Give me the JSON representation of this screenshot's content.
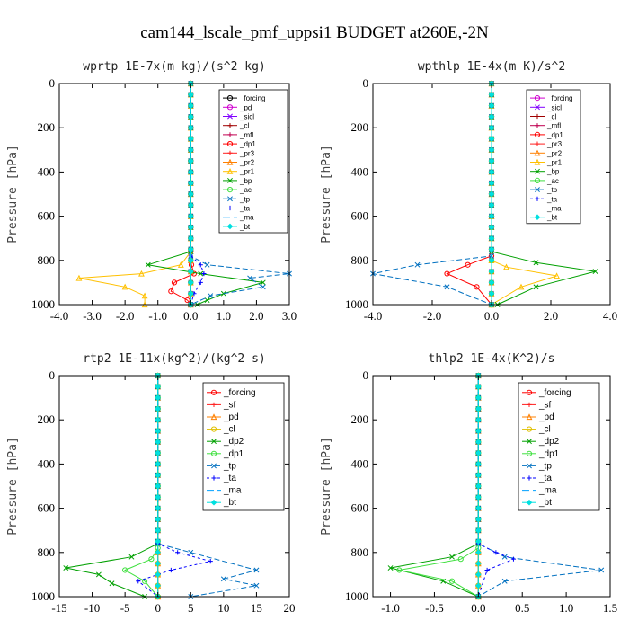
{
  "figure_title": "cam144_lscale_pmf_uppsi1  BUDGET at260E,-2N",
  "chart_data": [
    {
      "type": "line",
      "title": "wprtp  1E-7x(m kg)/(s^2 kg)",
      "ylabel": "Pressure [hPa]",
      "xlim": [
        -4.0,
        3.0
      ],
      "ylim": [
        1000,
        0
      ],
      "xticks": [
        "-4.0",
        "-3.0",
        "-2.0",
        "-1.0",
        "0.0",
        "1.0",
        "2.0",
        "3.0"
      ],
      "yticks": [
        "0",
        "200",
        "400",
        "600",
        "800",
        "1000"
      ],
      "legend_position": "upper-right",
      "series": [
        {
          "name": "_forcing",
          "color": "#000000",
          "marker": "o",
          "dash": "",
          "x": [
            0,
            0
          ],
          "y": [
            0,
            1000
          ]
        },
        {
          "name": "_pd",
          "color": "#d000d0",
          "marker": "o",
          "dash": "",
          "x": [
            0,
            0
          ],
          "y": [
            0,
            1000
          ]
        },
        {
          "name": "_sicl",
          "color": "#8000ff",
          "marker": "x",
          "dash": "",
          "x": [
            0,
            0
          ],
          "y": [
            0,
            1000
          ]
        },
        {
          "name": "_cl",
          "color": "#a00000",
          "marker": "+",
          "dash": "",
          "x": [
            0,
            0
          ],
          "y": [
            0,
            1000
          ]
        },
        {
          "name": "_mfl",
          "color": "#c00050",
          "marker": "+",
          "dash": "",
          "x": [
            0,
            0
          ],
          "y": [
            0,
            1000
          ]
        },
        {
          "name": "_dp1",
          "color": "#ff0000",
          "marker": "o",
          "dash": "",
          "x": [
            0,
            0,
            0.02,
            0.1,
            -0.5,
            -0.6,
            -0.1,
            0
          ],
          "y": [
            0,
            760,
            820,
            860,
            900,
            940,
            980,
            1000
          ]
        },
        {
          "name": "_pr3",
          "color": "#ff2020",
          "marker": "+",
          "dash": "",
          "x": [
            0,
            0
          ],
          "y": [
            0,
            1000
          ]
        },
        {
          "name": "_pr2",
          "color": "#ff8000",
          "marker": "^",
          "dash": "",
          "x": [
            0,
            0
          ],
          "y": [
            0,
            1000
          ]
        },
        {
          "name": "_pr1",
          "color": "#ffc000",
          "marker": "^",
          "dash": "",
          "x": [
            0,
            0,
            -0.3,
            -1.5,
            -3.4,
            -2.0,
            -1.4,
            -1.4
          ],
          "y": [
            0,
            760,
            820,
            860,
            880,
            920,
            960,
            1000
          ]
        },
        {
          "name": "_bp",
          "color": "#00a000",
          "marker": "x",
          "dash": "",
          "x": [
            0,
            0,
            -1.3,
            0.3,
            2.2,
            1.0,
            0.5,
            0.2
          ],
          "y": [
            0,
            760,
            820,
            860,
            900,
            950,
            980,
            1000
          ]
        },
        {
          "name": "_ac",
          "color": "#40e040",
          "marker": "o",
          "dash": "",
          "x": [
            0,
            0
          ],
          "y": [
            0,
            1000
          ]
        },
        {
          "name": "_tp",
          "color": "#0070c0",
          "marker": "x",
          "dash": "6,3",
          "x": [
            0,
            0,
            0.5,
            3.0,
            1.8,
            2.2,
            0.6,
            0
          ],
          "y": [
            0,
            780,
            820,
            860,
            880,
            920,
            960,
            1000
          ]
        },
        {
          "name": "_ta",
          "color": "#0000ff",
          "marker": "+",
          "dash": "3,3",
          "x": [
            0,
            0,
            0.3,
            0.4,
            0.3,
            0.1,
            0
          ],
          "y": [
            0,
            780,
            820,
            860,
            900,
            950,
            1000
          ]
        },
        {
          "name": "_ma",
          "color": "#00a0ff",
          "marker": "-",
          "dash": "8,4",
          "x": [
            0,
            0
          ],
          "y": [
            0,
            1000
          ]
        },
        {
          "name": "_bt",
          "color": "#00e0e0",
          "marker": "d",
          "dash": "",
          "x": [
            0,
            0
          ],
          "y": [
            0,
            1000
          ]
        }
      ]
    },
    {
      "type": "line",
      "title": "wpthlp  1E-4x(m K)/s^2",
      "ylabel": "Pressure [hPa]",
      "xlim": [
        -4.0,
        4.0
      ],
      "ylim": [
        1000,
        0
      ],
      "xticks": [
        "-4.0",
        "-2.0",
        "0.0",
        "2.0",
        "4.0"
      ],
      "yticks": [
        "0",
        "200",
        "400",
        "600",
        "800",
        "1000"
      ],
      "legend_position": "upper-right",
      "series": [
        {
          "name": "_forcing",
          "color": "#d000d0",
          "marker": "o",
          "dash": "",
          "x": [
            0,
            0
          ],
          "y": [
            0,
            1000
          ]
        },
        {
          "name": "_sicl",
          "color": "#8000ff",
          "marker": "x",
          "dash": "",
          "x": [
            0,
            0
          ],
          "y": [
            0,
            1000
          ]
        },
        {
          "name": "_cl",
          "color": "#a00000",
          "marker": "+",
          "dash": "",
          "x": [
            0,
            0
          ],
          "y": [
            0,
            1000
          ]
        },
        {
          "name": "_mfl",
          "color": "#c00050",
          "marker": "+",
          "dash": "",
          "x": [
            0,
            0
          ],
          "y": [
            0,
            1000
          ]
        },
        {
          "name": "_dp1",
          "color": "#ff0000",
          "marker": "o",
          "dash": "",
          "x": [
            0,
            0,
            -0.8,
            -1.5,
            -0.5,
            0
          ],
          "y": [
            0,
            780,
            820,
            860,
            920,
            1000
          ]
        },
        {
          "name": "_pr3",
          "color": "#ff2020",
          "marker": "+",
          "dash": "",
          "x": [
            0,
            0
          ],
          "y": [
            0,
            1000
          ]
        },
        {
          "name": "_pr2",
          "color": "#ff8000",
          "marker": "^",
          "dash": "",
          "x": [
            0,
            0
          ],
          "y": [
            0,
            1000
          ]
        },
        {
          "name": "_pr1",
          "color": "#ffc000",
          "marker": "^",
          "dash": "",
          "x": [
            0,
            0,
            0.5,
            2.2,
            1.0,
            0
          ],
          "y": [
            0,
            800,
            830,
            870,
            920,
            1000
          ]
        },
        {
          "name": "_bp",
          "color": "#00a000",
          "marker": "x",
          "dash": "",
          "x": [
            0,
            0,
            1.5,
            3.5,
            1.5,
            0.2
          ],
          "y": [
            0,
            760,
            810,
            850,
            920,
            1000
          ]
        },
        {
          "name": "_ac",
          "color": "#40e040",
          "marker": "o",
          "dash": "",
          "x": [
            0,
            0
          ],
          "y": [
            0,
            1000
          ]
        },
        {
          "name": "_tp",
          "color": "#0070c0",
          "marker": "x",
          "dash": "6,3",
          "x": [
            0,
            0,
            -2.5,
            -4.0,
            -1.5,
            0
          ],
          "y": [
            0,
            780,
            820,
            860,
            920,
            1000
          ]
        },
        {
          "name": "_ta",
          "color": "#0000ff",
          "marker": "+",
          "dash": "3,3",
          "x": [
            0,
            0
          ],
          "y": [
            0,
            1000
          ]
        },
        {
          "name": "_ma",
          "color": "#00a0ff",
          "marker": "-",
          "dash": "8,4",
          "x": [
            0,
            0
          ],
          "y": [
            0,
            1000
          ]
        },
        {
          "name": "_bt",
          "color": "#00e0e0",
          "marker": "d",
          "dash": "",
          "x": [
            0,
            0
          ],
          "y": [
            0,
            1000
          ]
        }
      ]
    },
    {
      "type": "line",
      "title": "rtp2  1E-11x(kg^2)/(kg^2 s)",
      "ylabel": "Pressure [hPa]",
      "xlim": [
        -15,
        20
      ],
      "ylim": [
        1000,
        0
      ],
      "xticks": [
        "-15",
        "-10",
        "-5",
        "0",
        "5",
        "10",
        "15",
        "20"
      ],
      "yticks": [
        "0",
        "200",
        "400",
        "600",
        "800",
        "1000"
      ],
      "legend_position": "upper-right",
      "series": [
        {
          "name": "_forcing",
          "color": "#ff0000",
          "marker": "o",
          "dash": "",
          "x": [
            0,
            0
          ],
          "y": [
            0,
            1000
          ]
        },
        {
          "name": "_sf",
          "color": "#ff2020",
          "marker": "+",
          "dash": "",
          "x": [
            0,
            0
          ],
          "y": [
            0,
            1000
          ]
        },
        {
          "name": "_pd",
          "color": "#ff8000",
          "marker": "^",
          "dash": "",
          "x": [
            0,
            0
          ],
          "y": [
            0,
            1000
          ]
        },
        {
          "name": "_cl",
          "color": "#e0c000",
          "marker": "o",
          "dash": "",
          "x": [
            0,
            0
          ],
          "y": [
            0,
            1000
          ]
        },
        {
          "name": "_dp2",
          "color": "#00a000",
          "marker": "x",
          "dash": "",
          "x": [
            0,
            0,
            -4,
            -14,
            -9,
            -7,
            -2
          ],
          "y": [
            0,
            760,
            820,
            870,
            900,
            940,
            1000
          ]
        },
        {
          "name": "_dp1",
          "color": "#40e040",
          "marker": "o",
          "dash": "",
          "x": [
            0,
            0,
            -1,
            -5,
            -2,
            0
          ],
          "y": [
            0,
            780,
            830,
            880,
            930,
            1000
          ]
        },
        {
          "name": "_tp",
          "color": "#0070c0",
          "marker": "x",
          "dash": "6,3",
          "x": [
            0,
            0,
            5,
            15,
            10,
            15,
            5
          ],
          "y": [
            0,
            760,
            800,
            880,
            920,
            950,
            1000
          ]
        },
        {
          "name": "_ta",
          "color": "#0000ff",
          "marker": "+",
          "dash": "3,3",
          "x": [
            0,
            0,
            3,
            8,
            2,
            -3,
            0
          ],
          "y": [
            0,
            760,
            800,
            840,
            880,
            930,
            1000
          ]
        },
        {
          "name": "_ma",
          "color": "#00a0ff",
          "marker": "-",
          "dash": "8,4",
          "x": [
            0,
            0
          ],
          "y": [
            0,
            1000
          ]
        },
        {
          "name": "_bt",
          "color": "#00e0e0",
          "marker": "d",
          "dash": "",
          "x": [
            0,
            0
          ],
          "y": [
            0,
            1000
          ]
        }
      ]
    },
    {
      "type": "line",
      "title": "thlp2  1E-4x(K^2)/s",
      "ylabel": "Pressure [hPa]",
      "xlim": [
        -1.2,
        1.5
      ],
      "ylim": [
        1000,
        0
      ],
      "xticks": [
        "-1.0",
        "-0.5",
        "0.0",
        "0.5",
        "1.0",
        "1.5"
      ],
      "yticks": [
        "0",
        "200",
        "400",
        "600",
        "800",
        "1000"
      ],
      "legend_position": "upper-right",
      "series": [
        {
          "name": "_forcing",
          "color": "#ff0000",
          "marker": "o",
          "dash": "",
          "x": [
            0,
            0
          ],
          "y": [
            0,
            1000
          ]
        },
        {
          "name": "_sf",
          "color": "#ff2020",
          "marker": "+",
          "dash": "",
          "x": [
            0,
            0
          ],
          "y": [
            0,
            1000
          ]
        },
        {
          "name": "_pd",
          "color": "#ff8000",
          "marker": "^",
          "dash": "",
          "x": [
            0,
            0
          ],
          "y": [
            0,
            1000
          ]
        },
        {
          "name": "_cl",
          "color": "#e0c000",
          "marker": "o",
          "dash": "",
          "x": [
            0,
            0
          ],
          "y": [
            0,
            1000
          ]
        },
        {
          "name": "_dp2",
          "color": "#00a000",
          "marker": "x",
          "dash": "",
          "x": [
            0,
            0,
            -0.3,
            -1.0,
            -0.4,
            0
          ],
          "y": [
            0,
            760,
            820,
            870,
            930,
            1000
          ]
        },
        {
          "name": "_dp1",
          "color": "#40e040",
          "marker": "o",
          "dash": "",
          "x": [
            0,
            0,
            -0.2,
            -0.9,
            -0.3,
            0
          ],
          "y": [
            0,
            780,
            830,
            880,
            930,
            1000
          ]
        },
        {
          "name": "_tp",
          "color": "#0070c0",
          "marker": "x",
          "dash": "6,3",
          "x": [
            0,
            0,
            0.3,
            1.4,
            0.3,
            0
          ],
          "y": [
            0,
            760,
            820,
            880,
            930,
            1000
          ]
        },
        {
          "name": "_ta",
          "color": "#0000ff",
          "marker": "+",
          "dash": "3,3",
          "x": [
            0,
            0,
            0.2,
            0.4,
            0.1,
            0
          ],
          "y": [
            0,
            760,
            800,
            830,
            880,
            1000
          ]
        },
        {
          "name": "_ma",
          "color": "#00a0ff",
          "marker": "-",
          "dash": "8,4",
          "x": [
            0,
            0
          ],
          "y": [
            0,
            1000
          ]
        },
        {
          "name": "_bt",
          "color": "#00e0e0",
          "marker": "d",
          "dash": "",
          "x": [
            0,
            0
          ],
          "y": [
            0,
            1000
          ]
        }
      ]
    }
  ]
}
